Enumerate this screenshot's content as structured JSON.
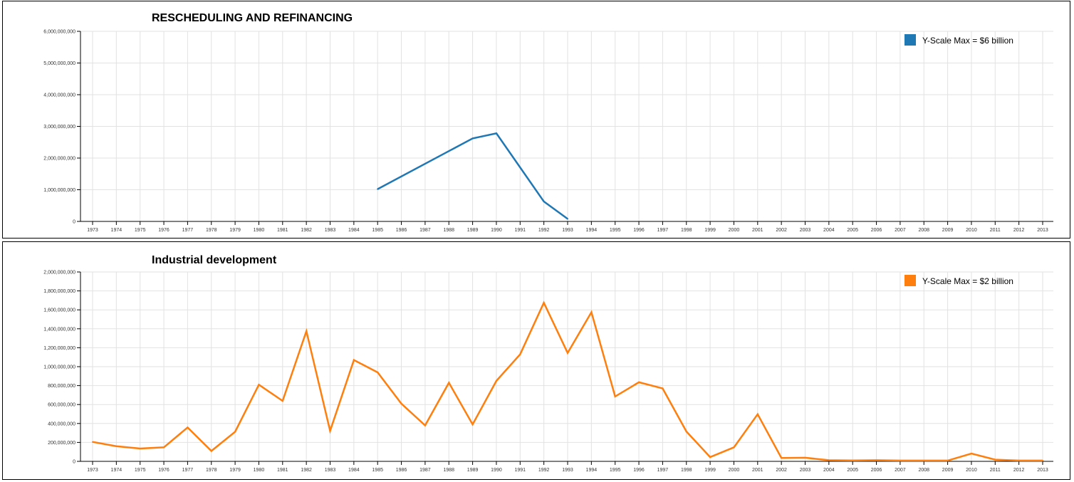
{
  "chart_data": [
    {
      "type": "line",
      "title": "RESCHEDULING AND REFINANCING",
      "xlabel": "",
      "ylabel": "",
      "x": [
        1973,
        1974,
        1975,
        1976,
        1977,
        1978,
        1979,
        1980,
        1981,
        1982,
        1983,
        1984,
        1985,
        1986,
        1987,
        1988,
        1989,
        1990,
        1991,
        1992,
        1993,
        1994,
        1995,
        1996,
        1997,
        1998,
        1999,
        2000,
        2001,
        2002,
        2003,
        2004,
        2005,
        2006,
        2007,
        2008,
        2009,
        2010,
        2011,
        2012,
        2013
      ],
      "ylim": [
        0,
        6000000000
      ],
      "yticks": [
        0,
        1000000000,
        2000000000,
        3000000000,
        4000000000,
        5000000000,
        6000000000
      ],
      "ytick_labels": [
        "0",
        "1,000,000,000",
        "2,000,000,000",
        "3,000,000,000",
        "4,000,000,000",
        "5,000,000,000",
        "6,000,000,000"
      ],
      "grid": true,
      "legend_position": "top-right",
      "series": [
        {
          "name": "Y-Scale Max = $6 billion",
          "color": "#1f77b4",
          "points": [
            [
              1985,
              1020000000
            ],
            [
              1989,
              2620000000
            ],
            [
              1990,
              2780000000
            ],
            [
              1992,
              630000000
            ],
            [
              1993,
              80000000
            ]
          ]
        }
      ]
    },
    {
      "type": "line",
      "title": "Industrial development",
      "xlabel": "",
      "ylabel": "",
      "x": [
        1973,
        1974,
        1975,
        1976,
        1977,
        1978,
        1979,
        1980,
        1981,
        1982,
        1983,
        1984,
        1985,
        1986,
        1987,
        1988,
        1989,
        1990,
        1991,
        1992,
        1993,
        1994,
        1995,
        1996,
        1997,
        1998,
        1999,
        2000,
        2001,
        2002,
        2003,
        2004,
        2005,
        2006,
        2007,
        2008,
        2009,
        2010,
        2011,
        2012,
        2013
      ],
      "ylim": [
        0,
        2000000000
      ],
      "yticks": [
        0,
        200000000,
        400000000,
        600000000,
        800000000,
        1000000000,
        1200000000,
        1400000000,
        1600000000,
        1800000000,
        2000000000
      ],
      "ytick_labels": [
        "0",
        "200,000,000",
        "400,000,000",
        "600,000,000",
        "800,000,000",
        "1,000,000,000",
        "1,200,000,000",
        "1,400,000,000",
        "1,600,000,000",
        "1,800,000,000",
        "2,000,000,000"
      ],
      "grid": true,
      "legend_position": "top-right",
      "series": [
        {
          "name": "Y-Scale Max = $2 billion",
          "color": "#ff7f0e",
          "points": [
            [
              1973,
              205000000
            ],
            [
              1974,
              160000000
            ],
            [
              1975,
              135000000
            ],
            [
              1976,
              148000000
            ],
            [
              1977,
              358000000
            ],
            [
              1978,
              110000000
            ],
            [
              1979,
              312000000
            ],
            [
              1980,
              810000000
            ],
            [
              1981,
              638000000
            ],
            [
              1982,
              1375000000
            ],
            [
              1983,
              322000000
            ],
            [
              1984,
              1070000000
            ],
            [
              1985,
              940000000
            ],
            [
              1986,
              610000000
            ],
            [
              1987,
              380000000
            ],
            [
              1988,
              830000000
            ],
            [
              1989,
              390000000
            ],
            [
              1990,
              850000000
            ],
            [
              1991,
              1130000000
            ],
            [
              1992,
              1675000000
            ],
            [
              1993,
              1145000000
            ],
            [
              1994,
              1575000000
            ],
            [
              1995,
              685000000
            ],
            [
              1996,
              835000000
            ],
            [
              1997,
              770000000
            ],
            [
              1998,
              315000000
            ],
            [
              1999,
              45000000
            ],
            [
              2000,
              148000000
            ],
            [
              2001,
              498000000
            ],
            [
              2002,
              35000000
            ],
            [
              2003,
              38000000
            ],
            [
              2004,
              12000000
            ],
            [
              2005,
              10000000
            ],
            [
              2006,
              12000000
            ],
            [
              2007,
              8000000
            ],
            [
              2008,
              8000000
            ],
            [
              2009,
              8000000
            ],
            [
              2010,
              82000000
            ],
            [
              2011,
              18000000
            ],
            [
              2012,
              8000000
            ],
            [
              2013,
              8000000
            ]
          ]
        }
      ]
    }
  ]
}
